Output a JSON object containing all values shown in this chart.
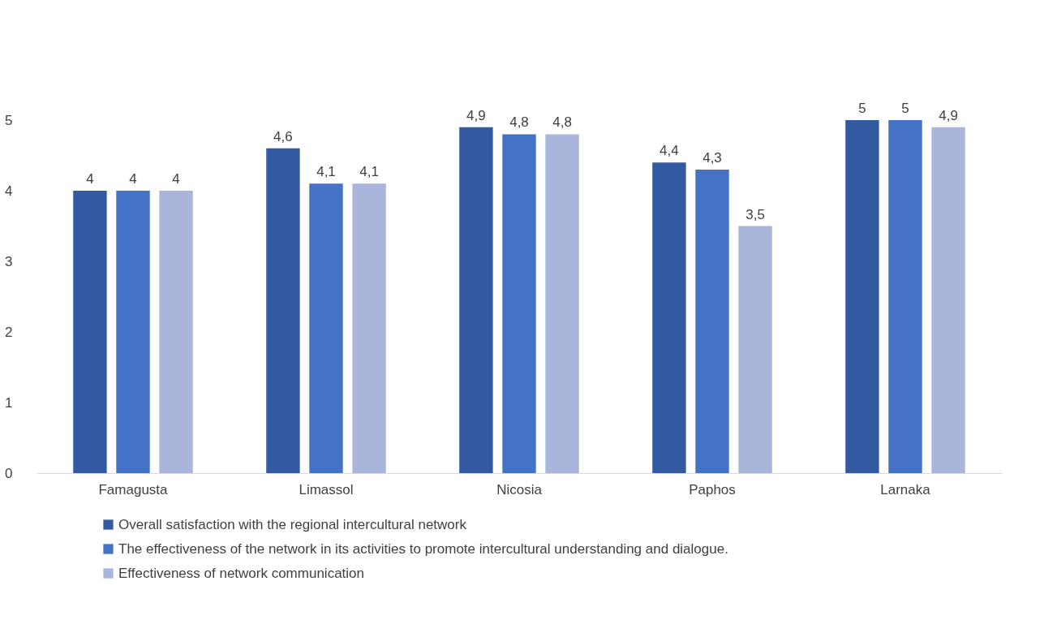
{
  "chart_data": {
    "type": "bar",
    "categories": [
      "Famagusta",
      "Limassol",
      "Nicosia",
      "Paphos",
      "Larnaka"
    ],
    "series": [
      {
        "name": "Overall satisfaction with the regional intercultural network",
        "color": "#335aa1",
        "values": [
          4,
          4.6,
          4.9,
          4.4,
          5
        ],
        "value_labels": [
          "4",
          "4,6",
          "4,9",
          "4,4",
          "5"
        ]
      },
      {
        "name": "The effectiveness of the network in its activities to promote intercultural understanding and dialogue.",
        "color": "#4472c4",
        "values": [
          4,
          4.1,
          4.8,
          4.3,
          5
        ],
        "value_labels": [
          "4",
          "4,1",
          "4,8",
          "4,3",
          "5"
        ]
      },
      {
        "name": "Effectiveness of network communication",
        "color": "#a9b5da",
        "values": [
          4,
          4.1,
          4.8,
          3.5,
          4.9
        ],
        "value_labels": [
          "4",
          "4,1",
          "4,8",
          "3,5",
          "4,9"
        ]
      }
    ],
    "ylim": [
      0,
      5
    ],
    "yticks": [
      0,
      1,
      2,
      3,
      4,
      5
    ],
    "grid": false,
    "legend": "bottom"
  }
}
